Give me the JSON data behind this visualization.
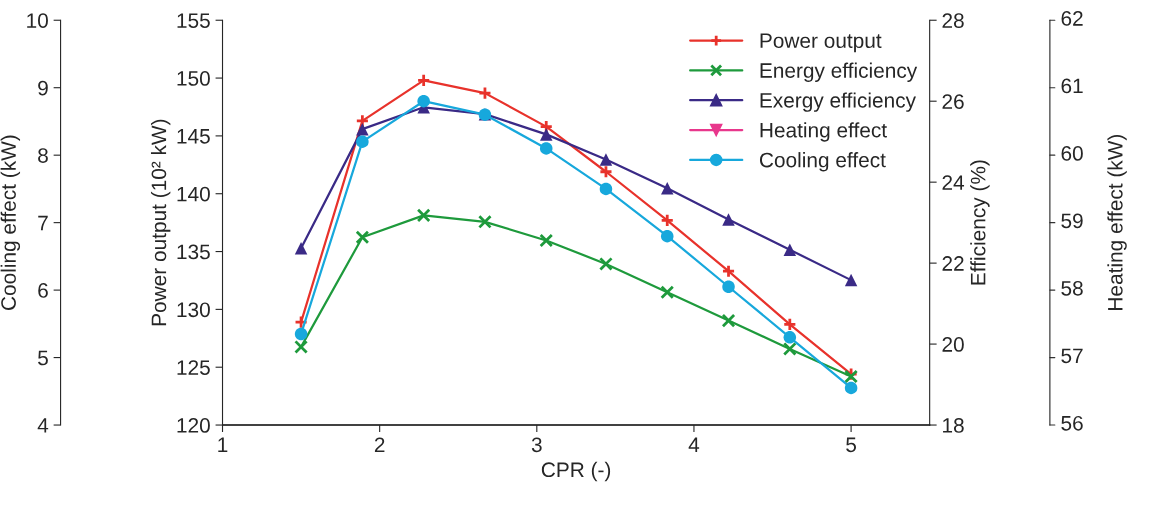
{
  "chart_data": {
    "type": "line",
    "xlabel": "CPR (-)",
    "ylabel": "Power output (10² kW)",
    "y2label": "Efficiency (%)",
    "y3label": "Cooling effect (kW)",
    "annotations": [
      "56",
      "57",
      "58",
      "59",
      "60",
      "61",
      "62",
      "Heating effect (kW)"
    ],
    "x": [
      1.5,
      1.89,
      2.28,
      2.67,
      3.06,
      3.44,
      3.83,
      4.22,
      4.61,
      5.0
    ],
    "xlim": [
      1,
      5.5
    ],
    "xticks": [
      1,
      2,
      3,
      4,
      5
    ],
    "ylim": [
      120,
      155
    ],
    "yticks": [
      120,
      125,
      130,
      135,
      140,
      145,
      150,
      155
    ],
    "y2lim": [
      18,
      28
    ],
    "y2ticks": [
      18,
      20,
      22,
      24,
      26,
      28
    ],
    "y3lim": [
      4,
      10
    ],
    "y3ticks": [
      4,
      5,
      6,
      7,
      8,
      9,
      10
    ],
    "grid": false,
    "legend": "top right",
    "line_style": "solid",
    "series": [
      {
        "name": "Power output",
        "color": "#e8322b",
        "marker": "plus",
        "axis": "y",
        "values": [
          128.9,
          146.3,
          149.8,
          148.7,
          145.8,
          141.9,
          137.7,
          133.3,
          128.7,
          124.4
        ]
      },
      {
        "name": "Energy efficiency",
        "color": "#1e9a3c",
        "marker": "cross",
        "axis": "y2",
        "values": [
          19.93,
          22.64,
          23.18,
          23.02,
          22.56,
          21.98,
          21.28,
          20.58,
          19.88,
          19.2
        ]
      },
      {
        "name": "Exergy efficiency",
        "color": "#3a2a86",
        "marker": "triangle",
        "axis": "y2",
        "values": [
          22.37,
          25.31,
          25.85,
          25.68,
          25.18,
          24.56,
          23.85,
          23.08,
          22.33,
          21.58
        ]
      },
      {
        "name": "Heating effect",
        "color": "#e8378c",
        "marker": "triangle_down",
        "values": [
          null,
          null,
          null,
          null,
          null,
          null,
          null,
          null,
          null,
          null
        ]
      },
      {
        "name": "Cooling effect",
        "color": "#17a8dc",
        "marker": "circle",
        "axis": "y3",
        "values": [
          5.35,
          8.2,
          8.8,
          8.6,
          8.1,
          7.5,
          6.8,
          6.05,
          5.3,
          4.55
        ]
      }
    ]
  }
}
